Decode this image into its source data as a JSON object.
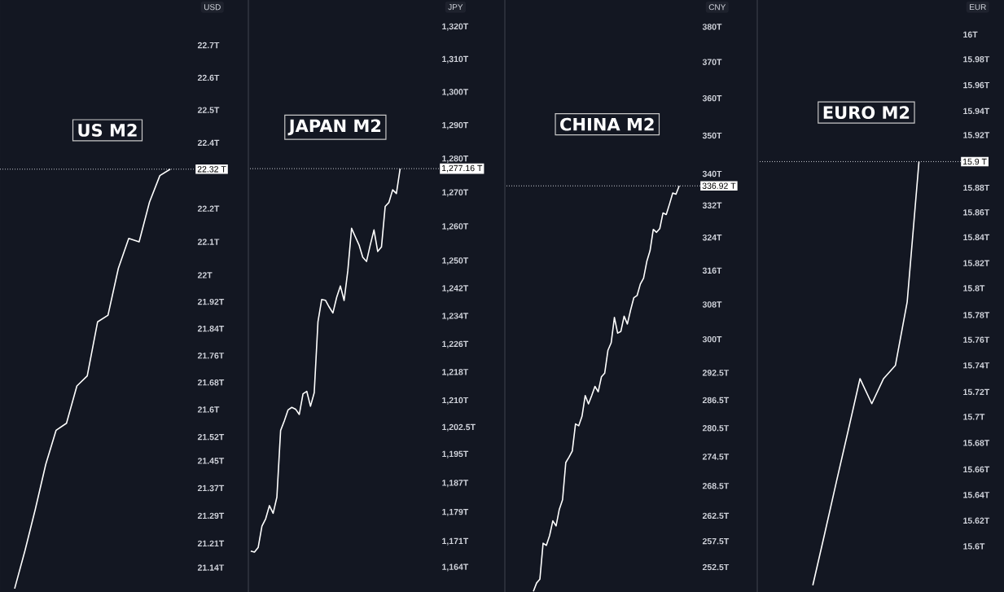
{
  "chart_data": [
    {
      "type": "line",
      "title": "US M2",
      "ylabel": "USD",
      "color": "#ffffff",
      "log": true,
      "tick_labels": "y",
      "categories": [
        null,
        null,
        null,
        null,
        null,
        null,
        null,
        null,
        null,
        null,
        null,
        null,
        null,
        null,
        null,
        null
      ],
      "values": [
        21.08,
        21.19,
        21.31,
        21.44,
        21.54,
        21.56,
        21.67,
        21.7,
        21.86,
        21.88,
        22.02,
        22.11,
        22.1,
        22.22,
        22.3,
        22.32
      ],
      "ylim": [
        21.07,
        22.84
      ],
      "yticks": [
        {
          "value": 22.7,
          "label": "22.7T"
        },
        {
          "value": 22.6,
          "label": "22.6T"
        },
        {
          "value": 22.5,
          "label": "22.5T"
        },
        {
          "value": 22.4,
          "label": "22.4T"
        },
        {
          "value": 22.2,
          "label": "22.2T"
        },
        {
          "value": 22.1,
          "label": "22.1T"
        },
        {
          "value": 22,
          "label": "22T"
        },
        {
          "value": 21.92,
          "label": "21.92T"
        },
        {
          "value": 21.84,
          "label": "21.84T"
        },
        {
          "value": 21.76,
          "label": "21.76T"
        },
        {
          "value": 21.68,
          "label": "21.68T"
        },
        {
          "value": 21.6,
          "label": "21.6T"
        },
        {
          "value": 21.52,
          "label": "21.52T"
        },
        {
          "value": 21.45,
          "label": "21.45T"
        },
        {
          "value": 21.37,
          "label": "21.37T"
        },
        {
          "value": 21.29,
          "label": "21.29T"
        },
        {
          "value": 21.21,
          "label": "21.21T"
        },
        {
          "value": 21.14,
          "label": "21.14T"
        }
      ],
      "ref_lines": [
        {
          "axis": "y",
          "value": 22.32,
          "label": "22.32 T",
          "line_style": "dotted"
        }
      ]
    },
    {
      "type": "line",
      "title": "JAPAN M2",
      "ylabel": "JPY",
      "color": "#ffffff",
      "log": true,
      "tick_labels": "y",
      "categories": [
        null,
        null,
        null,
        null,
        null,
        null,
        null,
        null,
        null,
        null,
        null,
        null,
        null,
        null,
        null,
        null,
        null,
        null,
        null,
        null,
        null,
        null,
        null,
        null,
        null,
        null,
        null,
        null,
        null,
        null,
        null,
        null,
        null,
        null,
        null,
        null,
        null,
        null,
        null,
        null,
        null
      ],
      "values": [
        1168.5,
        1168.2,
        1169.5,
        1175.3,
        1177.3,
        1180.9,
        1178.8,
        1183.2,
        1201.7,
        1204.4,
        1207.5,
        1208.2,
        1207.7,
        1206.2,
        1212.0,
        1212.7,
        1208.5,
        1212.3,
        1232.5,
        1238.9,
        1238.7,
        1236.7,
        1235.0,
        1239.5,
        1242.8,
        1238.6,
        1247.3,
        1259.6,
        1257.1,
        1254.7,
        1251.1,
        1249.9,
        1254.7,
        1259.1,
        1252.8,
        1254.1,
        1266.0,
        1267.2,
        1270.9,
        1269.8,
        1277.16
      ],
      "ylim": [
        1157.4,
        1328.3
      ],
      "yticks": [
        {
          "value": 1320,
          "label": "1,320T"
        },
        {
          "value": 1310,
          "label": "1,310T"
        },
        {
          "value": 1300,
          "label": "1,300T"
        },
        {
          "value": 1290,
          "label": "1,290T"
        },
        {
          "value": 1280,
          "label": "1,280T"
        },
        {
          "value": 1270,
          "label": "1,270T"
        },
        {
          "value": 1260,
          "label": "1,260T"
        },
        {
          "value": 1250,
          "label": "1,250T"
        },
        {
          "value": 1242,
          "label": "1,242T"
        },
        {
          "value": 1234,
          "label": "1,234T"
        },
        {
          "value": 1226,
          "label": "1,226T"
        },
        {
          "value": 1218,
          "label": "1,218T"
        },
        {
          "value": 1210,
          "label": "1,210T"
        },
        {
          "value": 1202.5,
          "label": "1,202.5T"
        },
        {
          "value": 1195,
          "label": "1,195T"
        },
        {
          "value": 1187,
          "label": "1,187T"
        },
        {
          "value": 1179,
          "label": "1,179T"
        },
        {
          "value": 1171,
          "label": "1,171T"
        },
        {
          "value": 1164,
          "label": "1,164T"
        }
      ],
      "ref_lines": [
        {
          "axis": "y",
          "value": 1277.16,
          "label": "1,277.16 T",
          "line_style": "dotted"
        }
      ]
    },
    {
      "type": "line",
      "title": "CHINA M2",
      "ylabel": "CNY",
      "color": "#ffffff",
      "log": true,
      "tick_labels": "y",
      "categories": [
        null,
        null,
        null,
        null,
        null,
        null,
        null,
        null,
        null,
        null,
        null,
        null,
        null,
        null,
        null,
        null,
        null,
        null,
        null,
        null,
        null,
        null,
        null,
        null,
        null,
        null,
        null,
        null,
        null,
        null,
        null,
        null,
        null,
        null,
        null,
        null,
        null,
        null,
        null,
        null,
        null,
        null,
        null,
        null,
        null,
        null
      ],
      "values": [
        247.9,
        249.5,
        250.2,
        257.1,
        256.7,
        258.6,
        261.5,
        260.5,
        263.8,
        265.7,
        273.3,
        274.4,
        275.7,
        281.4,
        281.0,
        283.0,
        287.5,
        285.7,
        287.5,
        289.5,
        288.3,
        291.6,
        292.4,
        297.5,
        299.2,
        305.0,
        301.4,
        301.8,
        305.3,
        303.5,
        306.7,
        309.6,
        310.1,
        312.8,
        314.2,
        318.2,
        320.8,
        326.0,
        325.3,
        326.2,
        330.1,
        329.7,
        332.3,
        335.1,
        334.8,
        336.92
      ],
      "ylim": [
        247.8,
        387.8
      ],
      "yticks": [
        {
          "value": 380,
          "label": "380T"
        },
        {
          "value": 370,
          "label": "370T"
        },
        {
          "value": 360,
          "label": "360T"
        },
        {
          "value": 350,
          "label": "350T"
        },
        {
          "value": 340,
          "label": "340T"
        },
        {
          "value": 332,
          "label": "332T"
        },
        {
          "value": 324,
          "label": "324T"
        },
        {
          "value": 316,
          "label": "316T"
        },
        {
          "value": 308,
          "label": "308T"
        },
        {
          "value": 300,
          "label": "300T"
        },
        {
          "value": 292.5,
          "label": "292.5T"
        },
        {
          "value": 286.5,
          "label": "286.5T"
        },
        {
          "value": 280.5,
          "label": "280.5T"
        },
        {
          "value": 274.5,
          "label": "274.5T"
        },
        {
          "value": 268.5,
          "label": "268.5T"
        },
        {
          "value": 262.5,
          "label": "262.5T"
        },
        {
          "value": 257.5,
          "label": "257.5T"
        },
        {
          "value": 252.5,
          "label": "252.5T"
        }
      ],
      "ref_lines": [
        {
          "axis": "y",
          "value": 336.92,
          "label": "336.92 T",
          "line_style": "dotted"
        }
      ]
    },
    {
      "type": "line",
      "title": "EURO M2",
      "ylabel": "EUR",
      "color": "#ffffff",
      "log": true,
      "tick_labels": "y",
      "categories": [
        null,
        null,
        null,
        null,
        null,
        null,
        null,
        null,
        null,
        null
      ],
      "values": [
        15.57,
        15.61,
        15.65,
        15.69,
        15.73,
        15.71,
        15.73,
        15.74,
        15.79,
        15.9
      ],
      "ylim": [
        15.565,
        16.027
      ],
      "yticks": [
        {
          "value": 16,
          "label": "16T"
        },
        {
          "value": 15.98,
          "label": "15.98T"
        },
        {
          "value": 15.96,
          "label": "15.96T"
        },
        {
          "value": 15.94,
          "label": "15.94T"
        },
        {
          "value": 15.92,
          "label": "15.92T"
        },
        {
          "value": 15.88,
          "label": "15.88T"
        },
        {
          "value": 15.86,
          "label": "15.86T"
        },
        {
          "value": 15.84,
          "label": "15.84T"
        },
        {
          "value": 15.82,
          "label": "15.82T"
        },
        {
          "value": 15.8,
          "label": "15.8T"
        },
        {
          "value": 15.78,
          "label": "15.78T"
        },
        {
          "value": 15.76,
          "label": "15.76T"
        },
        {
          "value": 15.74,
          "label": "15.74T"
        },
        {
          "value": 15.72,
          "label": "15.72T"
        },
        {
          "value": 15.7,
          "label": "15.7T"
        },
        {
          "value": 15.68,
          "label": "15.68T"
        },
        {
          "value": 15.66,
          "label": "15.66T"
        },
        {
          "value": 15.64,
          "label": "15.64T"
        },
        {
          "value": 15.62,
          "label": "15.62T"
        },
        {
          "value": 15.6,
          "label": "15.6T"
        }
      ],
      "ref_lines": [
        {
          "axis": "y",
          "value": 15.9,
          "label": "15.9 T",
          "line_style": "dotted"
        }
      ]
    }
  ]
}
